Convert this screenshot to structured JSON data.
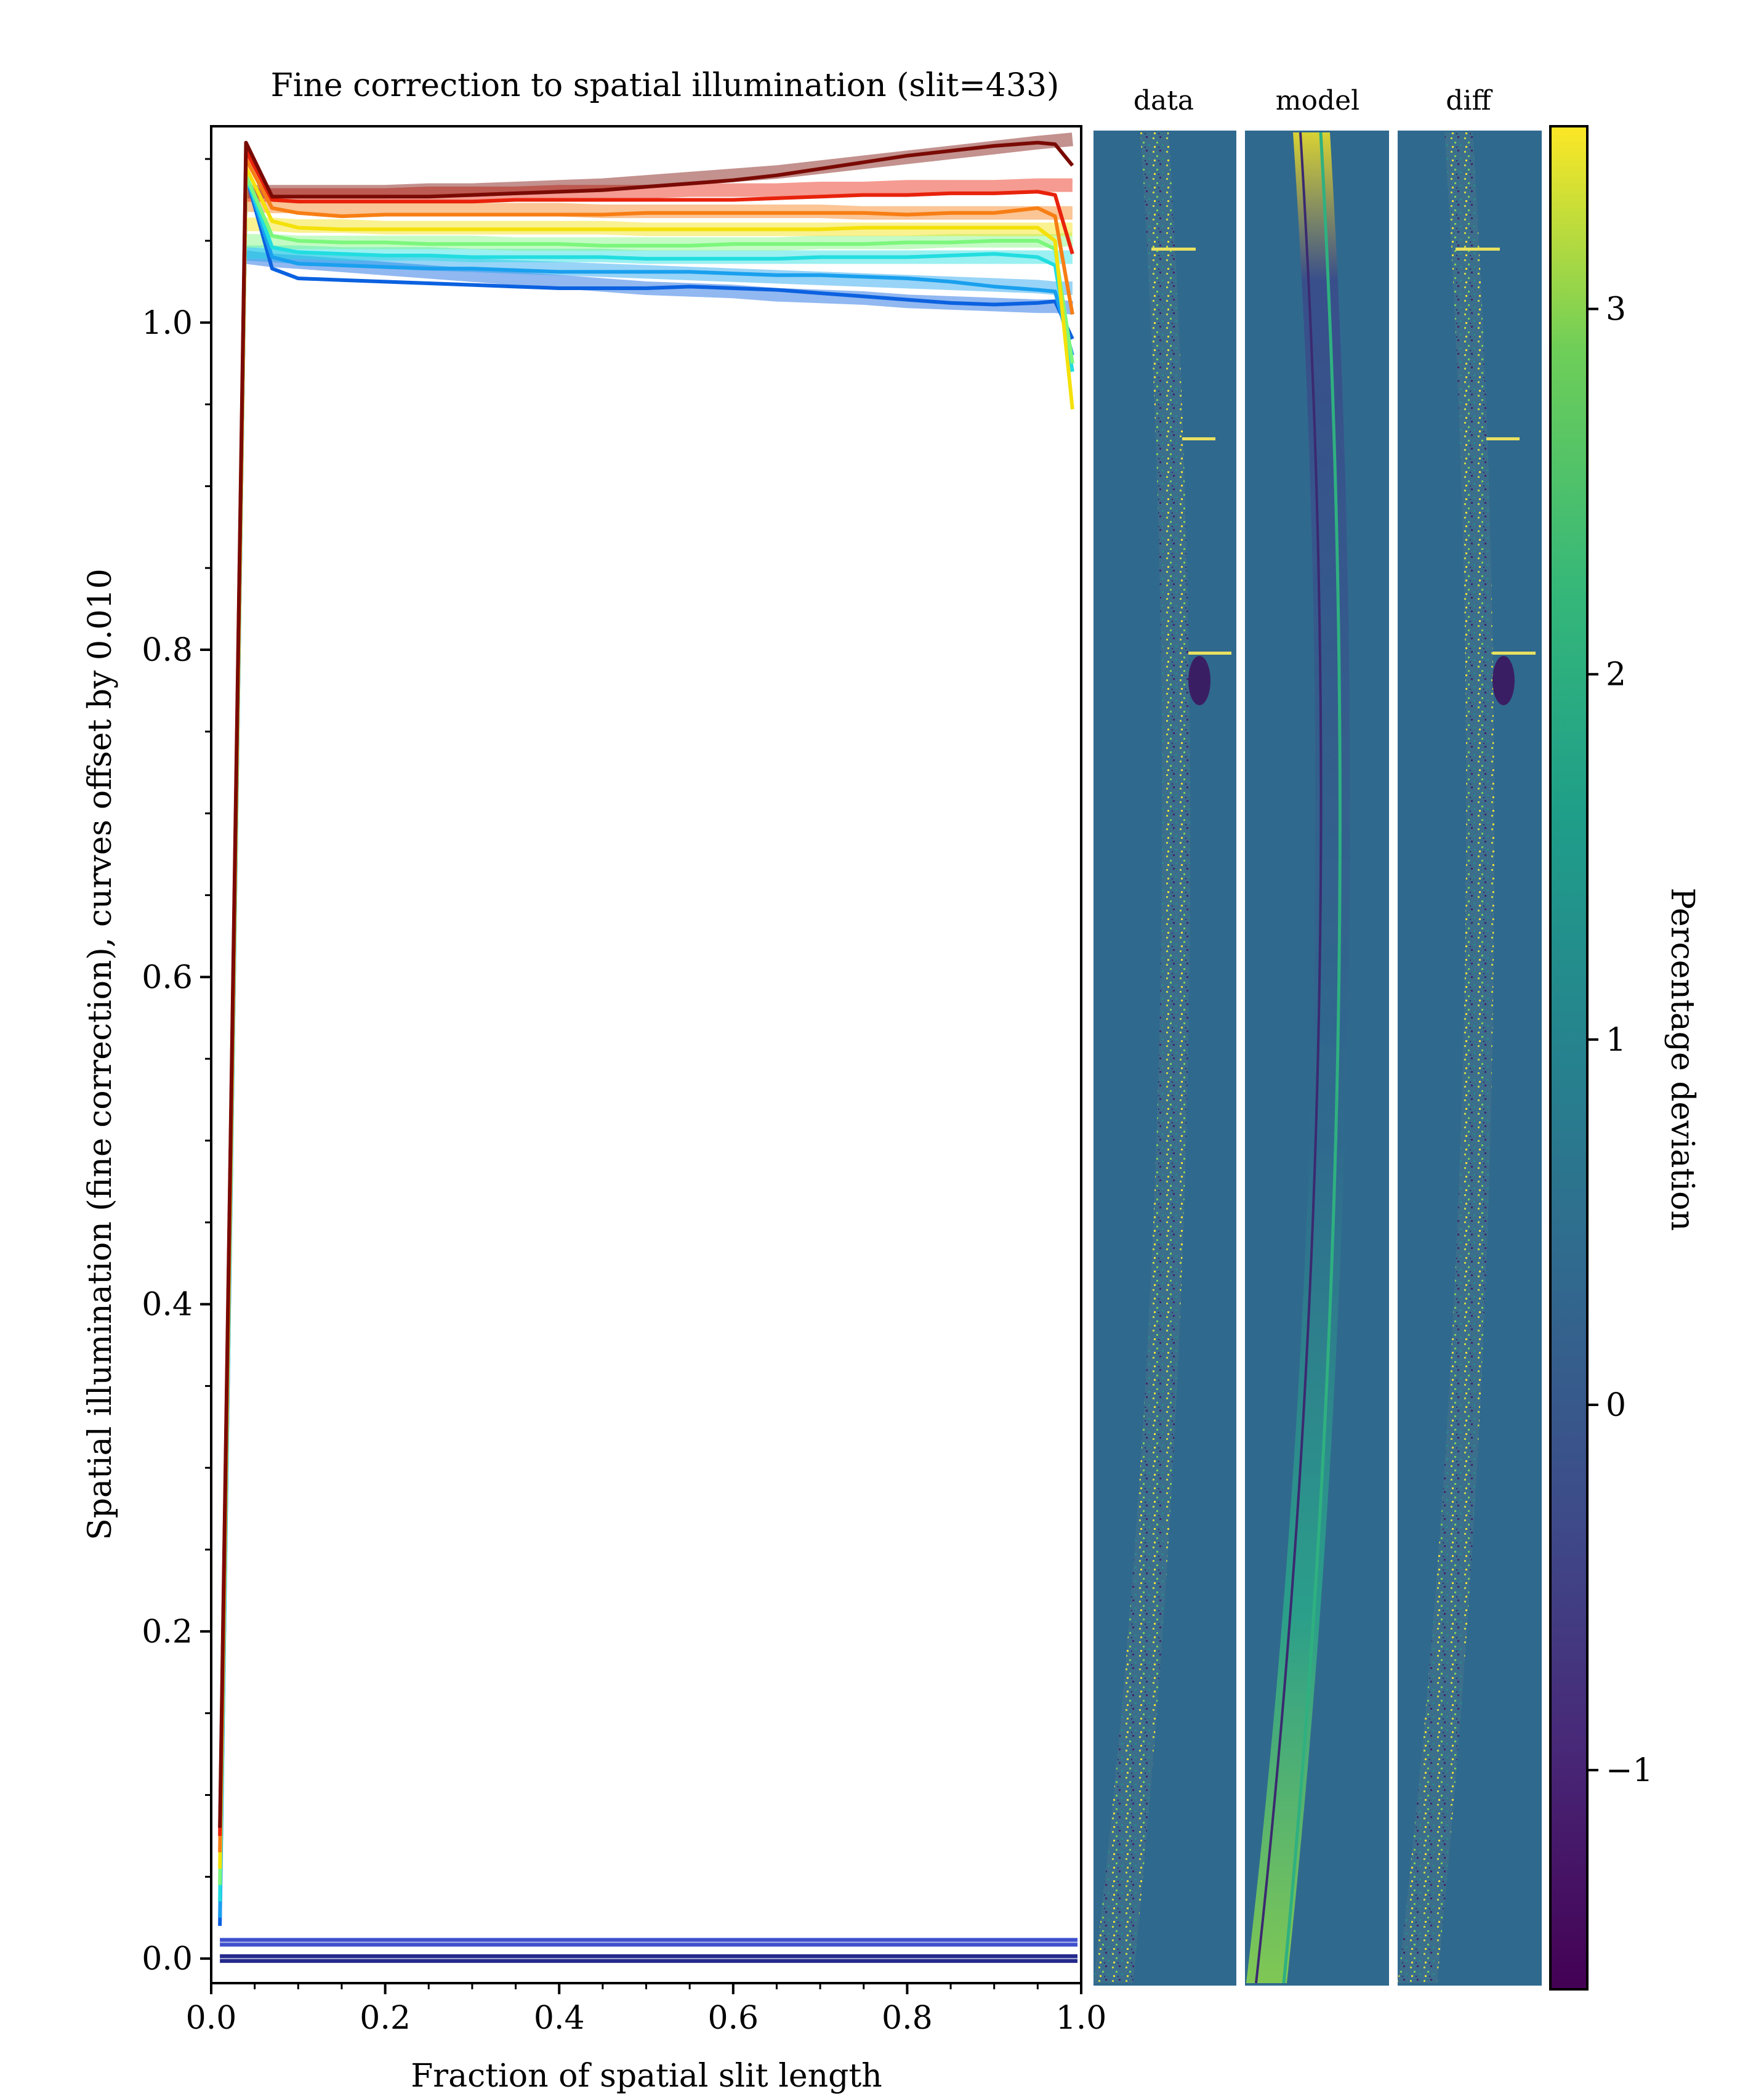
{
  "chart_data": [
    {
      "type": "line",
      "title": "Fine correction to spatial illumination (slit=433)",
      "xlabel": "Fraction of spatial slit length",
      "ylabel": "Spatial illumination (fine correction), curves offset by 0.010",
      "xlim": [
        0.0,
        1.0
      ],
      "ylim": [
        -0.015,
        1.12
      ],
      "xticks": [
        "0.0",
        "0.2",
        "0.4",
        "0.6",
        "0.8",
        "1.0"
      ],
      "yticks": [
        "0.0",
        "0.2",
        "0.4",
        "0.6",
        "0.8",
        "1.0"
      ],
      "grid": false,
      "legend": "none",
      "x": [
        0.01,
        0.04,
        0.07,
        0.1,
        0.15,
        0.2,
        0.25,
        0.3,
        0.35,
        0.4,
        0.45,
        0.5,
        0.55,
        0.6,
        0.65,
        0.7,
        0.75,
        0.8,
        0.85,
        0.9,
        0.95,
        0.97,
        0.99
      ],
      "series": [
        {
          "color": "#0b61e0",
          "values": [
            0.02,
            1.09,
            1.033,
            1.027,
            1.026,
            1.025,
            1.024,
            1.023,
            1.022,
            1.021,
            1.021,
            1.021,
            1.022,
            1.021,
            1.02,
            1.018,
            1.016,
            1.014,
            1.012,
            1.011,
            1.012,
            1.013,
            0.99
          ],
          "model": [
            null,
            1.04,
            1.038,
            1.037,
            1.035,
            1.033,
            1.031,
            1.029,
            1.027,
            1.025,
            1.023,
            1.021,
            1.02,
            1.019,
            1.017,
            1.016,
            1.015,
            1.013,
            1.012,
            1.011,
            1.01,
            1.01,
            1.009
          ]
        },
        {
          "color": "#1aa0ee",
          "values": [
            0.025,
            1.09,
            1.04,
            1.036,
            1.035,
            1.034,
            1.033,
            1.033,
            1.032,
            1.031,
            1.031,
            1.031,
            1.031,
            1.03,
            1.029,
            1.029,
            1.028,
            1.027,
            1.025,
            1.022,
            1.02,
            1.019,
            0.98
          ],
          "model": [
            null,
            1.042,
            1.041,
            1.04,
            1.038,
            1.037,
            1.036,
            1.035,
            1.034,
            1.033,
            1.032,
            1.031,
            1.03,
            1.029,
            1.028,
            1.027,
            1.026,
            1.025,
            1.024,
            1.023,
            1.022,
            1.021,
            1.021
          ]
        },
        {
          "color": "#22dde0",
          "values": [
            0.035,
            1.09,
            1.046,
            1.043,
            1.042,
            1.041,
            1.041,
            1.04,
            1.04,
            1.04,
            1.04,
            1.039,
            1.039,
            1.039,
            1.039,
            1.04,
            1.04,
            1.04,
            1.041,
            1.042,
            1.04,
            1.035,
            0.97
          ],
          "model": [
            null,
            1.043,
            1.043,
            1.043,
            1.042,
            1.042,
            1.042,
            1.041,
            1.041,
            1.041,
            1.041,
            1.04,
            1.04,
            1.04,
            1.04,
            1.04,
            1.04,
            1.04,
            1.04,
            1.04,
            1.04,
            1.04,
            1.04
          ]
        },
        {
          "color": "#7cf77c",
          "values": [
            0.045,
            1.09,
            1.053,
            1.05,
            1.049,
            1.049,
            1.048,
            1.048,
            1.048,
            1.048,
            1.047,
            1.047,
            1.047,
            1.048,
            1.048,
            1.048,
            1.048,
            1.049,
            1.049,
            1.05,
            1.05,
            1.045,
            0.975
          ],
          "model": [
            null,
            1.05,
            1.05,
            1.049,
            1.049,
            1.049,
            1.049,
            1.049,
            1.048,
            1.048,
            1.048,
            1.048,
            1.048,
            1.048,
            1.048,
            1.049,
            1.049,
            1.049,
            1.05,
            1.05,
            1.05,
            1.05,
            1.051
          ]
        },
        {
          "color": "#f4e10a",
          "values": [
            0.055,
            1.095,
            1.062,
            1.058,
            1.057,
            1.057,
            1.057,
            1.057,
            1.057,
            1.057,
            1.057,
            1.057,
            1.057,
            1.057,
            1.057,
            1.057,
            1.058,
            1.058,
            1.058,
            1.058,
            1.058,
            1.05,
            0.947
          ],
          "model": [
            null,
            1.06,
            1.06,
            1.059,
            1.059,
            1.058,
            1.058,
            1.058,
            1.058,
            1.058,
            1.058,
            1.057,
            1.057,
            1.057,
            1.057,
            1.057,
            1.057,
            1.057,
            1.057,
            1.057,
            1.057,
            1.057,
            1.057
          ]
        },
        {
          "color": "#f77e14",
          "values": [
            0.065,
            1.1,
            1.07,
            1.067,
            1.065,
            1.066,
            1.066,
            1.066,
            1.066,
            1.066,
            1.066,
            1.067,
            1.067,
            1.067,
            1.067,
            1.067,
            1.067,
            1.066,
            1.067,
            1.067,
            1.07,
            1.065,
            1.005
          ],
          "model": [
            null,
            1.072,
            1.071,
            1.071,
            1.07,
            1.07,
            1.07,
            1.069,
            1.069,
            1.069,
            1.068,
            1.068,
            1.068,
            1.068,
            1.068,
            1.068,
            1.067,
            1.067,
            1.067,
            1.067,
            1.067,
            1.067,
            1.067
          ]
        },
        {
          "color": "#e8220b",
          "values": [
            0.075,
            1.105,
            1.075,
            1.074,
            1.074,
            1.074,
            1.074,
            1.074,
            1.075,
            1.075,
            1.075,
            1.075,
            1.075,
            1.075,
            1.076,
            1.077,
            1.078,
            1.078,
            1.079,
            1.079,
            1.08,
            1.078,
            1.042
          ],
          "model": [
            null,
            1.078,
            1.078,
            1.078,
            1.078,
            1.078,
            1.079,
            1.079,
            1.079,
            1.08,
            1.08,
            1.08,
            1.081,
            1.081,
            1.081,
            1.082,
            1.082,
            1.083,
            1.083,
            1.083,
            1.084,
            1.084,
            1.084
          ]
        },
        {
          "color": "#7a0a04",
          "values": [
            0.08,
            1.11,
            1.077,
            1.077,
            1.077,
            1.077,
            1.077,
            1.078,
            1.079,
            1.08,
            1.081,
            1.083,
            1.085,
            1.087,
            1.09,
            1.094,
            1.098,
            1.102,
            1.105,
            1.108,
            1.11,
            1.109,
            1.096
          ],
          "model": [
            null,
            1.08,
            1.08,
            1.08,
            1.08,
            1.08,
            1.081,
            1.081,
            1.082,
            1.083,
            1.084,
            1.086,
            1.088,
            1.09,
            1.092,
            1.095,
            1.098,
            1.101,
            1.104,
            1.107,
            1.11,
            1.111,
            1.112
          ]
        }
      ],
      "baseline_bands": [
        {
          "color": "#2a3cc8",
          "y": 0.01
        },
        {
          "color": "#0c1280",
          "y": 0.0
        }
      ]
    },
    {
      "type": "heatmap",
      "panels": [
        "data",
        "model",
        "diff"
      ],
      "background": "#30698e",
      "colorbar": {
        "label": "Percentage deviation",
        "ticks": [
          "3",
          "2",
          "1",
          "0",
          "−1"
        ],
        "min": -1.6,
        "max": 3.5
      }
    }
  ]
}
